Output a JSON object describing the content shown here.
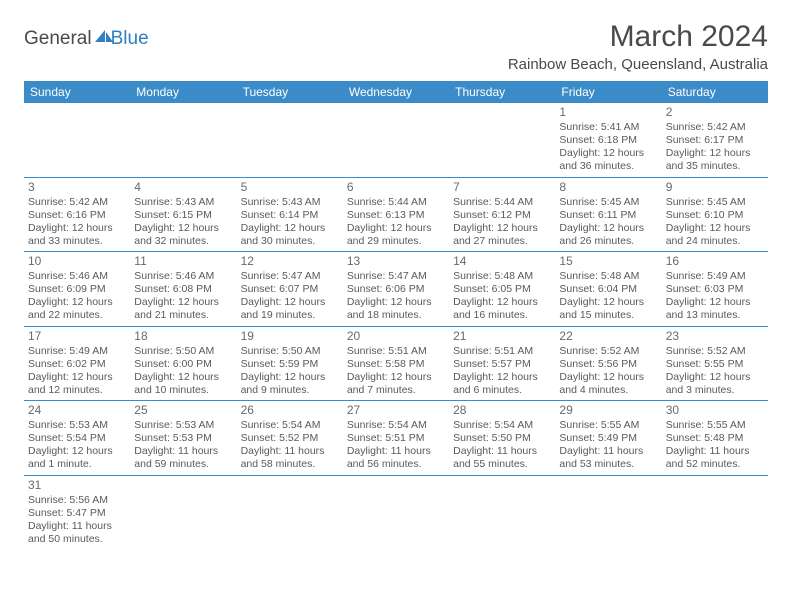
{
  "logo": {
    "text1": "General",
    "text2": "Blue",
    "color_blue": "#2f7fc2",
    "color_gray": "#4a4a4a"
  },
  "title": "March 2024",
  "location": "Rainbow Beach, Queensland, Australia",
  "days_of_week": [
    "Sunday",
    "Monday",
    "Tuesday",
    "Wednesday",
    "Thursday",
    "Friday",
    "Saturday"
  ],
  "header_bg": "#3b8bc8",
  "header_fg": "#ffffff",
  "cell_border": "#3b8bc8",
  "text_color": "#5a5a5a",
  "weeks": [
    [
      null,
      null,
      null,
      null,
      null,
      {
        "n": "1",
        "sr": "Sunrise: 5:41 AM",
        "ss": "Sunset: 6:18 PM",
        "d1": "Daylight: 12 hours",
        "d2": "and 36 minutes."
      },
      {
        "n": "2",
        "sr": "Sunrise: 5:42 AM",
        "ss": "Sunset: 6:17 PM",
        "d1": "Daylight: 12 hours",
        "d2": "and 35 minutes."
      }
    ],
    [
      {
        "n": "3",
        "sr": "Sunrise: 5:42 AM",
        "ss": "Sunset: 6:16 PM",
        "d1": "Daylight: 12 hours",
        "d2": "and 33 minutes."
      },
      {
        "n": "4",
        "sr": "Sunrise: 5:43 AM",
        "ss": "Sunset: 6:15 PM",
        "d1": "Daylight: 12 hours",
        "d2": "and 32 minutes."
      },
      {
        "n": "5",
        "sr": "Sunrise: 5:43 AM",
        "ss": "Sunset: 6:14 PM",
        "d1": "Daylight: 12 hours",
        "d2": "and 30 minutes."
      },
      {
        "n": "6",
        "sr": "Sunrise: 5:44 AM",
        "ss": "Sunset: 6:13 PM",
        "d1": "Daylight: 12 hours",
        "d2": "and 29 minutes."
      },
      {
        "n": "7",
        "sr": "Sunrise: 5:44 AM",
        "ss": "Sunset: 6:12 PM",
        "d1": "Daylight: 12 hours",
        "d2": "and 27 minutes."
      },
      {
        "n": "8",
        "sr": "Sunrise: 5:45 AM",
        "ss": "Sunset: 6:11 PM",
        "d1": "Daylight: 12 hours",
        "d2": "and 26 minutes."
      },
      {
        "n": "9",
        "sr": "Sunrise: 5:45 AM",
        "ss": "Sunset: 6:10 PM",
        "d1": "Daylight: 12 hours",
        "d2": "and 24 minutes."
      }
    ],
    [
      {
        "n": "10",
        "sr": "Sunrise: 5:46 AM",
        "ss": "Sunset: 6:09 PM",
        "d1": "Daylight: 12 hours",
        "d2": "and 22 minutes."
      },
      {
        "n": "11",
        "sr": "Sunrise: 5:46 AM",
        "ss": "Sunset: 6:08 PM",
        "d1": "Daylight: 12 hours",
        "d2": "and 21 minutes."
      },
      {
        "n": "12",
        "sr": "Sunrise: 5:47 AM",
        "ss": "Sunset: 6:07 PM",
        "d1": "Daylight: 12 hours",
        "d2": "and 19 minutes."
      },
      {
        "n": "13",
        "sr": "Sunrise: 5:47 AM",
        "ss": "Sunset: 6:06 PM",
        "d1": "Daylight: 12 hours",
        "d2": "and 18 minutes."
      },
      {
        "n": "14",
        "sr": "Sunrise: 5:48 AM",
        "ss": "Sunset: 6:05 PM",
        "d1": "Daylight: 12 hours",
        "d2": "and 16 minutes."
      },
      {
        "n": "15",
        "sr": "Sunrise: 5:48 AM",
        "ss": "Sunset: 6:04 PM",
        "d1": "Daylight: 12 hours",
        "d2": "and 15 minutes."
      },
      {
        "n": "16",
        "sr": "Sunrise: 5:49 AM",
        "ss": "Sunset: 6:03 PM",
        "d1": "Daylight: 12 hours",
        "d2": "and 13 minutes."
      }
    ],
    [
      {
        "n": "17",
        "sr": "Sunrise: 5:49 AM",
        "ss": "Sunset: 6:02 PM",
        "d1": "Daylight: 12 hours",
        "d2": "and 12 minutes."
      },
      {
        "n": "18",
        "sr": "Sunrise: 5:50 AM",
        "ss": "Sunset: 6:00 PM",
        "d1": "Daylight: 12 hours",
        "d2": "and 10 minutes."
      },
      {
        "n": "19",
        "sr": "Sunrise: 5:50 AM",
        "ss": "Sunset: 5:59 PM",
        "d1": "Daylight: 12 hours",
        "d2": "and 9 minutes."
      },
      {
        "n": "20",
        "sr": "Sunrise: 5:51 AM",
        "ss": "Sunset: 5:58 PM",
        "d1": "Daylight: 12 hours",
        "d2": "and 7 minutes."
      },
      {
        "n": "21",
        "sr": "Sunrise: 5:51 AM",
        "ss": "Sunset: 5:57 PM",
        "d1": "Daylight: 12 hours",
        "d2": "and 6 minutes."
      },
      {
        "n": "22",
        "sr": "Sunrise: 5:52 AM",
        "ss": "Sunset: 5:56 PM",
        "d1": "Daylight: 12 hours",
        "d2": "and 4 minutes."
      },
      {
        "n": "23",
        "sr": "Sunrise: 5:52 AM",
        "ss": "Sunset: 5:55 PM",
        "d1": "Daylight: 12 hours",
        "d2": "and 3 minutes."
      }
    ],
    [
      {
        "n": "24",
        "sr": "Sunrise: 5:53 AM",
        "ss": "Sunset: 5:54 PM",
        "d1": "Daylight: 12 hours",
        "d2": "and 1 minute."
      },
      {
        "n": "25",
        "sr": "Sunrise: 5:53 AM",
        "ss": "Sunset: 5:53 PM",
        "d1": "Daylight: 11 hours",
        "d2": "and 59 minutes."
      },
      {
        "n": "26",
        "sr": "Sunrise: 5:54 AM",
        "ss": "Sunset: 5:52 PM",
        "d1": "Daylight: 11 hours",
        "d2": "and 58 minutes."
      },
      {
        "n": "27",
        "sr": "Sunrise: 5:54 AM",
        "ss": "Sunset: 5:51 PM",
        "d1": "Daylight: 11 hours",
        "d2": "and 56 minutes."
      },
      {
        "n": "28",
        "sr": "Sunrise: 5:54 AM",
        "ss": "Sunset: 5:50 PM",
        "d1": "Daylight: 11 hours",
        "d2": "and 55 minutes."
      },
      {
        "n": "29",
        "sr": "Sunrise: 5:55 AM",
        "ss": "Sunset: 5:49 PM",
        "d1": "Daylight: 11 hours",
        "d2": "and 53 minutes."
      },
      {
        "n": "30",
        "sr": "Sunrise: 5:55 AM",
        "ss": "Sunset: 5:48 PM",
        "d1": "Daylight: 11 hours",
        "d2": "and 52 minutes."
      }
    ],
    [
      {
        "n": "31",
        "sr": "Sunrise: 5:56 AM",
        "ss": "Sunset: 5:47 PM",
        "d1": "Daylight: 11 hours",
        "d2": "and 50 minutes."
      },
      null,
      null,
      null,
      null,
      null,
      null
    ]
  ]
}
